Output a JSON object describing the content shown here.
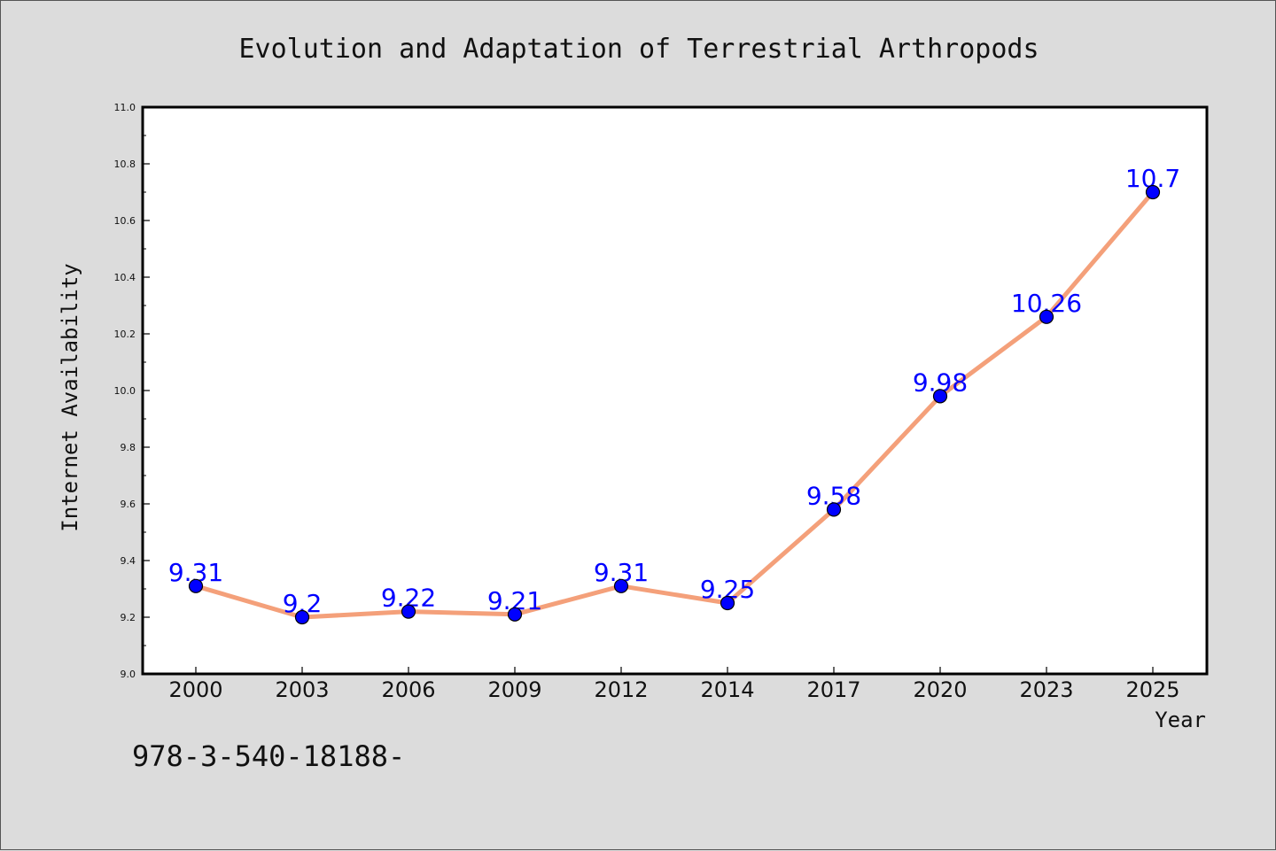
{
  "chart_data": {
    "type": "line",
    "title": "Evolution and Adaptation of Terrestrial Arthropods",
    "xlabel": "Year",
    "ylabel": "Internet Availability",
    "categories": [
      "2000",
      "2003",
      "2006",
      "2009",
      "2012",
      "2014",
      "2017",
      "2020",
      "2023",
      "2025"
    ],
    "series": [
      {
        "values": [
          9.31,
          9.2,
          9.22,
          9.21,
          9.31,
          9.25,
          9.58,
          9.98,
          10.26,
          10.7
        ],
        "data_labels": [
          "9.31",
          "9.2",
          "9.22",
          "9.21",
          "9.31",
          "9.25",
          "9.58",
          "9.98",
          "10.26",
          "10.7"
        ]
      }
    ],
    "ylim": [
      9.0,
      11.0
    ],
    "yticks": [
      "9.0",
      "9.2",
      "9.4",
      "9.6",
      "9.8",
      "10.0",
      "10.2",
      "10.4",
      "10.6",
      "10.8",
      "11.0"
    ],
    "grid": false,
    "colors": {
      "line": "#f4a07a",
      "marker": "#0000ff",
      "label": "#0000ff",
      "background": "#dcdcdc",
      "plot_background": "#ffffff"
    }
  },
  "footnote": "978-3-540-18188-"
}
